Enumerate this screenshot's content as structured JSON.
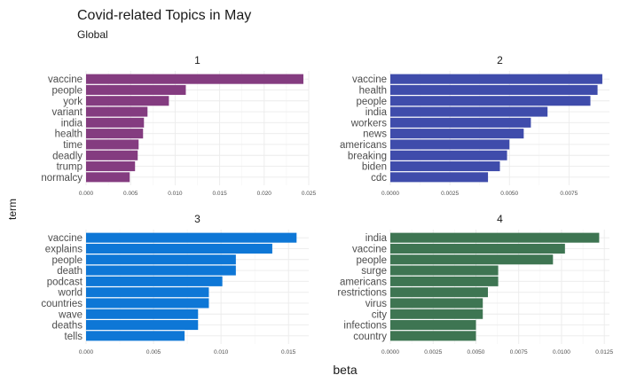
{
  "chart_data": {
    "type": "bar",
    "orientation": "horizontal",
    "title": "Covid-related Topics in May",
    "subtitle": "Global",
    "xlabel": "beta",
    "ylabel": "term",
    "grid": true,
    "panels": [
      {
        "label": "1",
        "color": "#843C80",
        "xlim": [
          0,
          0.025
        ],
        "ticks": [
          0,
          0.005,
          0.01,
          0.015,
          0.02,
          0.025
        ],
        "tick_labels": [
          "0.000",
          "0.005",
          "0.010",
          "0.015",
          "0.020",
          "0.025"
        ],
        "categories": [
          "vaccine",
          "people",
          "york",
          "variant",
          "india",
          "health",
          "time",
          "deadly",
          "trump",
          "normalcy"
        ],
        "values": [
          0.0244,
          0.0112,
          0.0093,
          0.0069,
          0.0065,
          0.0064,
          0.0059,
          0.0058,
          0.0055,
          0.0049
        ]
      },
      {
        "label": "2",
        "color": "#3F4CAB",
        "xlim": [
          0,
          0.0092
        ],
        "ticks": [
          0,
          0.0025,
          0.005,
          0.0075
        ],
        "tick_labels": [
          "0.0000",
          "0.0025",
          "0.0050",
          "0.0075"
        ],
        "categories": [
          "vaccine",
          "health",
          "people",
          "india",
          "workers",
          "news",
          "americans",
          "breaking",
          "biden",
          "cdc"
        ],
        "values": [
          0.0089,
          0.0087,
          0.0084,
          0.0066,
          0.0059,
          0.0056,
          0.005,
          0.0049,
          0.0046,
          0.0041
        ]
      },
      {
        "label": "3",
        "color": "#0E77D6",
        "xlim": [
          0,
          0.0165
        ],
        "ticks": [
          0,
          0.005,
          0.01,
          0.015
        ],
        "tick_labels": [
          "0.000",
          "0.005",
          "0.010",
          "0.015"
        ],
        "categories": [
          "vaccine",
          "explains",
          "people",
          "death",
          "podcast",
          "world",
          "countries",
          "wave",
          "deaths",
          "tells"
        ],
        "values": [
          0.0156,
          0.0138,
          0.0111,
          0.0111,
          0.0101,
          0.0091,
          0.0091,
          0.0083,
          0.0083,
          0.0073
        ]
      },
      {
        "label": "4",
        "color": "#3E7552",
        "xlim": [
          0,
          0.0128
        ],
        "ticks": [
          0,
          0.0025,
          0.005,
          0.0075,
          0.01,
          0.0125
        ],
        "tick_labels": [
          "0.0000",
          "0.0025",
          "0.0050",
          "0.0075",
          "0.0100",
          "0.0125"
        ],
        "categories": [
          "india",
          "vaccine",
          "people",
          "surge",
          "americans",
          "restrictions",
          "virus",
          "city",
          "infections",
          "country"
        ],
        "values": [
          0.0122,
          0.0102,
          0.0095,
          0.0063,
          0.0063,
          0.0057,
          0.0054,
          0.0054,
          0.005,
          0.005
        ]
      }
    ]
  }
}
